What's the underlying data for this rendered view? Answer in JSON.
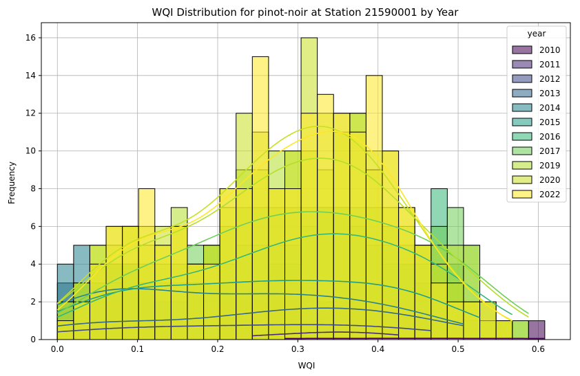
{
  "chart_data": {
    "type": "histogram",
    "title": "WQI Distribution for pinot-noir at Station 21590001 by Year",
    "xlabel": "WQI",
    "ylabel": "Frequency",
    "xlim": [
      -0.02,
      0.64
    ],
    "ylim": [
      0,
      16.8
    ],
    "xticks": [
      0.0,
      0.1,
      0.2,
      0.3,
      0.4,
      0.5,
      0.6
    ],
    "xtick_labels": [
      "0.0",
      "0.1",
      "0.2",
      "0.3",
      "0.4",
      "0.5",
      "0.6"
    ],
    "yticks": [
      0,
      2,
      4,
      6,
      8,
      10,
      12,
      14,
      16
    ],
    "ytick_labels": [
      "0",
      "2",
      "4",
      "6",
      "8",
      "10",
      "12",
      "14",
      "16"
    ],
    "grid": true,
    "legend_position": "top-right",
    "legend_title": "year",
    "bin_start": 0.0,
    "bin_width": 0.02027,
    "bin_count": 30,
    "series": [
      {
        "name": "2010",
        "color": "#440154",
        "values": [
          0,
          0,
          0,
          0,
          0,
          0,
          0,
          0,
          0,
          0,
          0,
          0,
          0,
          0,
          1,
          0,
          0,
          0,
          0,
          0,
          0,
          0,
          0,
          0,
          0,
          0,
          0,
          0,
          0,
          1
        ]
      },
      {
        "name": "2011",
        "color": "#482878",
        "values": [
          0,
          0,
          0,
          0,
          0,
          0,
          0,
          0,
          0,
          0,
          0,
          0,
          1,
          0,
          0,
          0,
          1,
          1,
          0,
          0,
          1,
          0,
          0,
          0,
          0,
          0,
          0,
          0,
          0,
          0
        ]
      },
      {
        "name": "2012",
        "color": "#3e4989",
        "values": [
          1,
          1,
          1,
          0,
          1,
          1,
          1,
          1,
          0,
          0,
          1,
          1,
          1,
          1,
          1,
          0,
          1,
          1,
          1,
          1,
          1,
          1,
          1,
          0,
          0,
          0,
          0,
          0,
          0,
          0
        ]
      },
      {
        "name": "2013",
        "color": "#31688e",
        "values": [
          3,
          1,
          1,
          2,
          1,
          1,
          1,
          0,
          0,
          0,
          2,
          2,
          2,
          2,
          2,
          1,
          2,
          2,
          2,
          2,
          2,
          2,
          1,
          1,
          1,
          0,
          0,
          0,
          0,
          0
        ]
      },
      {
        "name": "2014",
        "color": "#26828e",
        "values": [
          4,
          5,
          3,
          4,
          4,
          3,
          2,
          2,
          1,
          2,
          2,
          3,
          3,
          3,
          3,
          2,
          2,
          2,
          3,
          2,
          2,
          2,
          2,
          1,
          1,
          0,
          0,
          0,
          0,
          0
        ]
      },
      {
        "name": "2015",
        "color": "#1f9e89",
        "values": [
          2,
          3,
          3,
          4,
          4,
          3,
          2,
          2,
          3,
          3,
          3,
          3,
          3,
          4,
          4,
          3,
          2,
          3,
          3,
          3,
          4,
          4,
          3,
          3,
          1,
          1,
          0,
          0,
          0,
          0
        ]
      },
      {
        "name": "2016",
        "color": "#35b779",
        "values": [
          1,
          2,
          3,
          3,
          4,
          3,
          3,
          3,
          3,
          3,
          4,
          5,
          5,
          5,
          5,
          6,
          7,
          7,
          6,
          5,
          5,
          4,
          4,
          8,
          4,
          2,
          1,
          1,
          0,
          0
        ]
      },
      {
        "name": "2017",
        "color": "#6ece58",
        "values": [
          1,
          2,
          4,
          4,
          4,
          4,
          4,
          4,
          5,
          5,
          6,
          7,
          7,
          7,
          7,
          7,
          7,
          7,
          7,
          7,
          6,
          5,
          5,
          6,
          7,
          5,
          2,
          1,
          1,
          0
        ]
      },
      {
        "name": "2019",
        "color": "#b5de2b",
        "values": [
          2,
          3,
          5,
          5,
          6,
          5,
          5,
          7,
          4,
          5,
          7,
          9,
          9,
          10,
          10,
          10,
          9,
          11,
          12,
          10,
          7,
          6,
          5,
          5,
          5,
          5,
          2,
          1,
          1,
          0
        ]
      },
      {
        "name": "2020",
        "color": "#c8e020",
        "values": [
          2,
          3,
          5,
          6,
          6,
          6,
          6,
          6,
          4,
          5,
          8,
          12,
          11,
          8,
          10,
          16,
          12,
          12,
          12,
          9,
          10,
          7,
          5,
          4,
          3,
          2,
          1,
          1,
          0,
          0
        ]
      },
      {
        "name": "2022",
        "color": "#fde725",
        "values": [
          1,
          2,
          4,
          6,
          6,
          8,
          5,
          6,
          4,
          4,
          8,
          8,
          15,
          8,
          8,
          12,
          13,
          12,
          11,
          14,
          10,
          7,
          5,
          3,
          2,
          2,
          2,
          1,
          0,
          0
        ]
      }
    ]
  }
}
